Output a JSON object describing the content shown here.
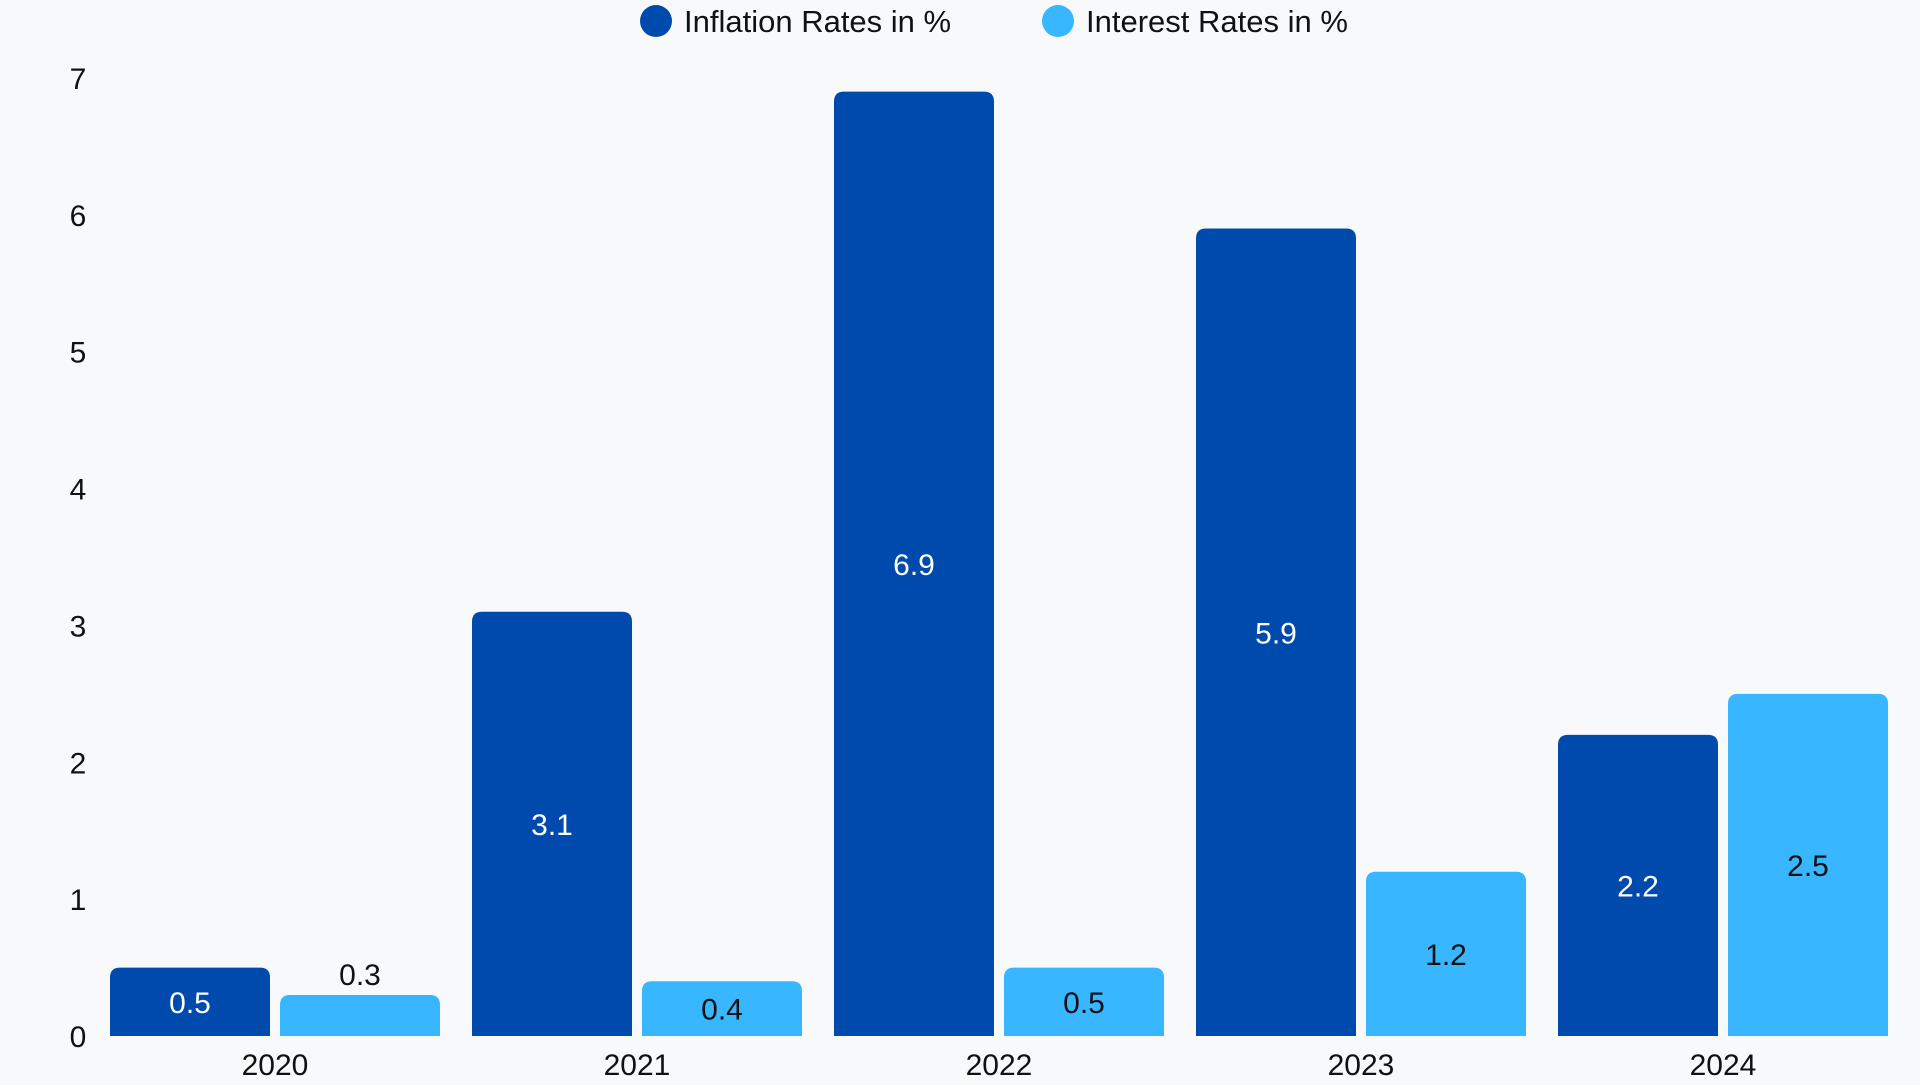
{
  "chart_data": {
    "type": "bar",
    "categories": [
      "2020",
      "2021",
      "2022",
      "2023",
      "2024"
    ],
    "series": [
      {
        "name": "Inflation Rates in %",
        "values": [
          0.5,
          3.1,
          6.9,
          5.9,
          2.2
        ],
        "color": "#004aad"
      },
      {
        "name": "Interest Rates in %",
        "values": [
          0.3,
          0.4,
          0.5,
          1.2,
          2.5
        ],
        "color": "#38b6ff"
      }
    ],
    "ylim": [
      0,
      7
    ],
    "yticks": [
      "0",
      "1",
      "2",
      "3",
      "4",
      "5",
      "6",
      "7"
    ],
    "data_labels": [
      [
        "0.5",
        "3.1",
        "6.9",
        "5.9",
        "2.2"
      ],
      [
        "0.3",
        "0.4",
        "0.5",
        "1.2",
        "2.5"
      ]
    ],
    "legend_position": "top-center",
    "grid": false,
    "title": "",
    "xlabel": "",
    "ylabel": ""
  },
  "colors": {
    "background": "#f7f9fb",
    "text": "#111111",
    "label_on_dark": "#ffffff"
  }
}
